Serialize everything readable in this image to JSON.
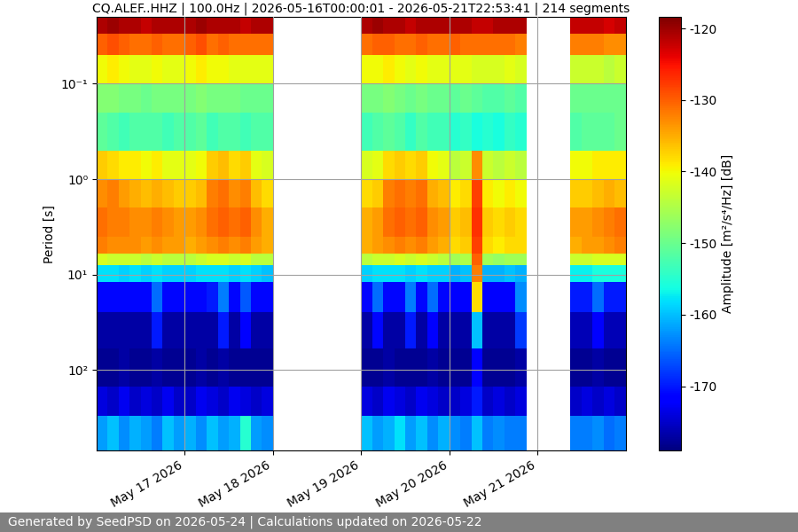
{
  "chart_data": {
    "type": "heatmap",
    "title": "CQ.ALEF..HHZ | 100.0Hz | 2026-05-16T00:00:01 - 2026-05-21T22:53:41 | 214 segments",
    "y_label": "Period [s]",
    "footer": "Generated by SeedPSD on 2026-05-24 | Calculations updated on 2026-05-22",
    "log": "y",
    "grid": true,
    "x": [
      "2026-05-16T00:00",
      "2026-05-16T03:00",
      "2026-05-16T06:00",
      "2026-05-16T09:00",
      "2026-05-16T12:00",
      "2026-05-16T15:00",
      "2026-05-16T18:00",
      "2026-05-16T21:00",
      "2026-05-17T00:00",
      "2026-05-17T03:00",
      "2026-05-17T06:00",
      "2026-05-17T09:00",
      "2026-05-17T12:00",
      "2026-05-17T15:00",
      "2026-05-17T18:00",
      "2026-05-17T21:00",
      "2026-05-18T00:00",
      "2026-05-18T03:00",
      "2026-05-18T06:00",
      "2026-05-18T09:00",
      "2026-05-18T12:00",
      "2026-05-18T15:00",
      "2026-05-18T18:00",
      "2026-05-18T21:00",
      "2026-05-19T00:00",
      "2026-05-19T03:00",
      "2026-05-19T06:00",
      "2026-05-19T09:00",
      "2026-05-19T12:00",
      "2026-05-19T15:00",
      "2026-05-19T18:00",
      "2026-05-19T21:00",
      "2026-05-20T00:00",
      "2026-05-20T03:00",
      "2026-05-20T06:00",
      "2026-05-20T09:00",
      "2026-05-20T12:00",
      "2026-05-20T15:00",
      "2026-05-20T18:00",
      "2026-05-20T21:00",
      "2026-05-21T00:00",
      "2026-05-21T03:00",
      "2026-05-21T06:00",
      "2026-05-21T09:00",
      "2026-05-21T12:00",
      "2026-05-21T15:00",
      "2026-05-21T18:00",
      "2026-05-21T21:00",
      "2026-05-22T00:00"
    ],
    "xlim": [
      "2026-05-16T00:00",
      "2026-05-22T00:00"
    ],
    "xticks": [
      {
        "value": "2026-05-17T00:00",
        "label": "May 17 2026"
      },
      {
        "value": "2026-05-18T00:00",
        "label": "May 18 2026"
      },
      {
        "value": "2026-05-19T00:00",
        "label": "May 19 2026"
      },
      {
        "value": "2026-05-20T00:00",
        "label": "May 20 2026"
      },
      {
        "value": "2026-05-21T00:00",
        "label": "May 21 2026"
      }
    ],
    "y": [
      0.02,
      0.03,
      0.05,
      0.1,
      0.2,
      0.5,
      1,
      2,
      4,
      6,
      8,
      12,
      25,
      60,
      150,
      300,
      700
    ],
    "ylim": [
      700,
      0.02
    ],
    "yticks": [
      {
        "value": 0.1,
        "label": "10⁻¹"
      },
      {
        "value": 1,
        "label": "10⁰"
      },
      {
        "value": 10,
        "label": "10¹"
      },
      {
        "value": 100,
        "label": "10²"
      }
    ],
    "cells": [
      [
        -121,
        -120,
        -121,
        -121,
        -122,
        -121,
        -121,
        -121,
        -121,
        -120,
        -121,
        -121,
        -121,
        -122,
        -121,
        -121,
        null,
        null,
        null,
        null,
        null,
        null,
        null,
        null,
        -121,
        -120,
        -121,
        -121,
        -122,
        -121,
        -121,
        -121,
        -121,
        -121,
        -122,
        -122,
        -121,
        -121,
        -121,
        null,
        null,
        null,
        null,
        -122,
        -122,
        -122,
        -123,
        -122
      ],
      [
        -130,
        -129,
        -130,
        -131,
        -131,
        -130,
        -131,
        -131,
        -130,
        -129,
        -131,
        -130,
        -131,
        -131,
        -131,
        -131,
        null,
        null,
        null,
        null,
        null,
        null,
        null,
        null,
        -131,
        -130,
        -130,
        -131,
        -131,
        -130,
        -131,
        -131,
        -130,
        -131,
        -131,
        -131,
        -131,
        -131,
        -132,
        null,
        null,
        null,
        null,
        -132,
        -132,
        -132,
        -133,
        -133
      ],
      [
        -140,
        -139,
        -140,
        -141,
        -141,
        -140,
        -141,
        -141,
        -140,
        -139,
        -140,
        -140,
        -141,
        -141,
        -141,
        -141,
        null,
        null,
        null,
        null,
        null,
        null,
        null,
        null,
        -140,
        -140,
        -139,
        -140,
        -141,
        -140,
        -141,
        -141,
        -141,
        -141,
        -142,
        -142,
        -142,
        -141,
        -142,
        null,
        null,
        null,
        null,
        -143,
        -143,
        -143,
        -144,
        -143
      ],
      [
        -148,
        -148,
        -149,
        -149,
        -150,
        -149,
        -149,
        -149,
        -149,
        -148,
        -149,
        -149,
        -149,
        -150,
        -150,
        -150,
        null,
        null,
        null,
        null,
        null,
        null,
        null,
        null,
        -149,
        -149,
        -148,
        -149,
        -150,
        -149,
        -150,
        -150,
        -151,
        -150,
        -151,
        -152,
        -152,
        -151,
        -152,
        null,
        null,
        null,
        null,
        -150,
        -150,
        -150,
        -150,
        -150
      ],
      [
        -151,
        -152,
        -153,
        -152,
        -152,
        -152,
        -153,
        -152,
        -152,
        -151,
        -153,
        -152,
        -152,
        -153,
        -152,
        -152,
        null,
        null,
        null,
        null,
        null,
        null,
        null,
        null,
        -153,
        -152,
        -151,
        -152,
        -154,
        -152,
        -153,
        -153,
        -155,
        -154,
        -156,
        -155,
        -156,
        -154,
        -155,
        null,
        null,
        null,
        null,
        -152,
        -151,
        -151,
        -151,
        -150
      ],
      [
        -137,
        -138,
        -139,
        -139,
        -140,
        -139,
        -141,
        -141,
        -141,
        -140,
        -137,
        -136,
        -138,
        -137,
        -141,
        -142,
        null,
        null,
        null,
        null,
        null,
        null,
        null,
        null,
        -142,
        -141,
        -138,
        -137,
        -138,
        -137,
        -140,
        -141,
        -144,
        -143,
        -133,
        -143,
        -144,
        -143,
        -144,
        null,
        null,
        null,
        null,
        -140,
        -140,
        -139,
        -139,
        -139
      ],
      [
        -133,
        -132,
        -134,
        -135,
        -136,
        -135,
        -136,
        -137,
        -137,
        -136,
        -132,
        -131,
        -133,
        -132,
        -136,
        -138,
        null,
        null,
        null,
        null,
        null,
        null,
        null,
        null,
        -138,
        -137,
        -132,
        -131,
        -132,
        -131,
        -135,
        -136,
        -139,
        -138,
        -128,
        -139,
        -140,
        -139,
        -140,
        null,
        null,
        null,
        null,
        -137,
        -137,
        -136,
        -135,
        -136
      ],
      [
        -131,
        -132,
        -132,
        -133,
        -133,
        -132,
        -133,
        -134,
        -134,
        -133,
        -131,
        -130,
        -131,
        -130,
        -133,
        -135,
        null,
        null,
        null,
        null,
        null,
        null,
        null,
        null,
        -135,
        -134,
        -131,
        -130,
        -131,
        -130,
        -133,
        -134,
        -137,
        -136,
        -127,
        -137,
        -138,
        -137,
        -138,
        null,
        null,
        null,
        null,
        -134,
        -134,
        -133,
        -132,
        -131
      ],
      [
        -132,
        -133,
        -133,
        -133,
        -134,
        -133,
        -134,
        -134,
        -135,
        -134,
        -133,
        -132,
        -133,
        -132,
        -134,
        -135,
        null,
        null,
        null,
        null,
        null,
        null,
        null,
        null,
        -135,
        -134,
        -133,
        -132,
        -133,
        -132,
        -134,
        -135,
        -138,
        -137,
        -128,
        -138,
        -139,
        -138,
        -138,
        null,
        null,
        null,
        null,
        -135,
        -134,
        -134,
        -133,
        -132
      ],
      [
        -142,
        -143,
        -143,
        -143,
        -144,
        -143,
        -144,
        -144,
        -144,
        -143,
        -142,
        -142,
        -143,
        -142,
        -144,
        -144,
        null,
        null,
        null,
        null,
        null,
        null,
        null,
        null,
        -144,
        -143,
        -143,
        -142,
        -143,
        -142,
        -143,
        -144,
        -146,
        -145,
        -130,
        -146,
        -147,
        -146,
        -146,
        null,
        null,
        null,
        null,
        -143,
        -143,
        -142,
        -142,
        -142
      ],
      [
        -158,
        -158,
        -159,
        -158,
        -159,
        -158,
        -159,
        -159,
        -159,
        -158,
        -158,
        -158,
        -159,
        -158,
        -159,
        -160,
        null,
        null,
        null,
        null,
        null,
        null,
        null,
        null,
        -159,
        -158,
        -158,
        -158,
        -159,
        -158,
        -159,
        -159,
        -161,
        -160,
        -132,
        -161,
        -161,
        -160,
        -161,
        null,
        null,
        null,
        null,
        -157,
        -157,
        -156,
        -156,
        -156
      ],
      [
        -171,
        -171,
        -171,
        -171,
        -171,
        -165,
        -171,
        -171,
        -171,
        -171,
        -170,
        -164,
        -171,
        -166,
        -171,
        -171,
        null,
        null,
        null,
        null,
        null,
        null,
        null,
        null,
        -171,
        -165,
        -171,
        -171,
        -164,
        -171,
        -165,
        -171,
        -172,
        -172,
        -138,
        -172,
        -172,
        -172,
        -163,
        null,
        null,
        null,
        null,
        -170,
        -170,
        -165,
        -170,
        -170
      ],
      [
        -177,
        -177,
        -177,
        -177,
        -177,
        -170,
        -177,
        -177,
        -177,
        -177,
        -177,
        -170,
        -177,
        -172,
        -177,
        -177,
        null,
        null,
        null,
        null,
        null,
        null,
        null,
        null,
        -177,
        -171,
        -177,
        -177,
        -170,
        -177,
        -172,
        -177,
        -177,
        -177,
        -160,
        -177,
        -177,
        -177,
        -168,
        null,
        null,
        null,
        null,
        -176,
        -176,
        -172,
        -176,
        -176
      ],
      [
        -178,
        -178,
        -177,
        -178,
        -178,
        -177,
        -178,
        -178,
        -178,
        -177,
        -178,
        -177,
        -178,
        -178,
        -178,
        -178,
        null,
        null,
        null,
        null,
        null,
        null,
        null,
        null,
        -178,
        -178,
        -177,
        -178,
        -178,
        -178,
        -177,
        -178,
        -178,
        -178,
        -172,
        -178,
        -178,
        -178,
        -177,
        null,
        null,
        null,
        null,
        -178,
        -178,
        -177,
        -178,
        -178
      ],
      [
        -174,
        -175,
        -173,
        -175,
        -174,
        -175,
        -173,
        -175,
        -175,
        -173,
        -174,
        -175,
        -173,
        -174,
        -175,
        -174,
        null,
        null,
        null,
        null,
        null,
        null,
        null,
        null,
        -174,
        -175,
        -173,
        -174,
        -175,
        -173,
        -174,
        -175,
        -175,
        -174,
        -170,
        -175,
        -174,
        -175,
        -174,
        null,
        null,
        null,
        null,
        -175,
        -174,
        -175,
        -174,
        -175
      ],
      [
        -162,
        -160,
        -163,
        -161,
        -162,
        -164,
        -160,
        -162,
        -161,
        -163,
        -160,
        -162,
        -161,
        -155,
        -162,
        -163,
        null,
        null,
        null,
        null,
        null,
        null,
        null,
        null,
        -160,
        -162,
        -161,
        -158,
        -162,
        -160,
        -163,
        -161,
        -163,
        -164,
        -160,
        -164,
        -163,
        -164,
        -164,
        null,
        null,
        null,
        null,
        -164,
        -164,
        -163,
        -165,
        -164
      ]
    ],
    "colorbar": {
      "label": "Amplitude [m²/s⁴/Hz] [dB]",
      "range": [
        -179,
        -118.4
      ],
      "ticks": [
        -170,
        -160,
        -150,
        -140,
        -130,
        -120
      ]
    }
  }
}
